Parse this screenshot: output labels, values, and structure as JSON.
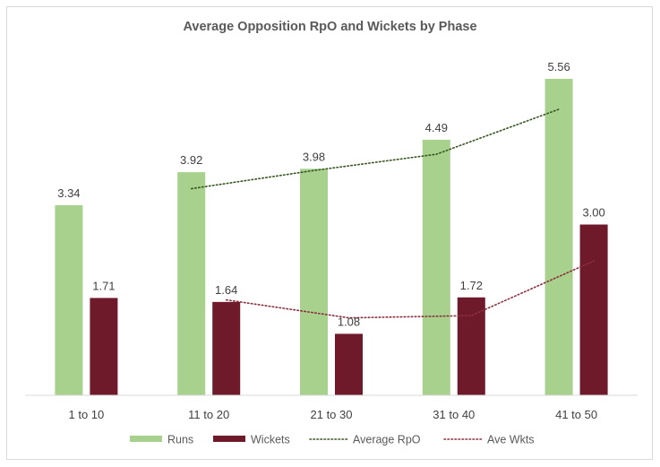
{
  "chart_data": {
    "type": "bar",
    "title": "Average Opposition RpO and Wickets by Phase",
    "categories": [
      "1 to 10",
      "11 to 20",
      "21 to 30",
      "31 to 40",
      "41 to 50"
    ],
    "series": [
      {
        "name": "Runs",
        "values": [
          3.34,
          3.92,
          3.98,
          4.49,
          5.56
        ],
        "color": "#a9d18e",
        "labels": [
          "3.34",
          "3.92",
          "3.98",
          "4.49",
          "5.56"
        ]
      },
      {
        "name": "Wickets",
        "values": [
          1.71,
          1.64,
          1.08,
          1.72,
          3.0
        ],
        "color": "#6f1a2b",
        "labels": [
          "1.71",
          "1.64",
          "1.08",
          "1.72",
          "3.00"
        ]
      }
    ],
    "trendlines": [
      {
        "name": "Average RpO",
        "of_series": 0,
        "style": "dotted",
        "color": "#375623"
      },
      {
        "name": "Ave Wkts",
        "of_series": 1,
        "style": "dotted",
        "color": "#8b2f3f"
      }
    ],
    "ylim": [
      0,
      6
    ],
    "y_axis_visible": false,
    "grid": false,
    "legend": "bottom"
  }
}
